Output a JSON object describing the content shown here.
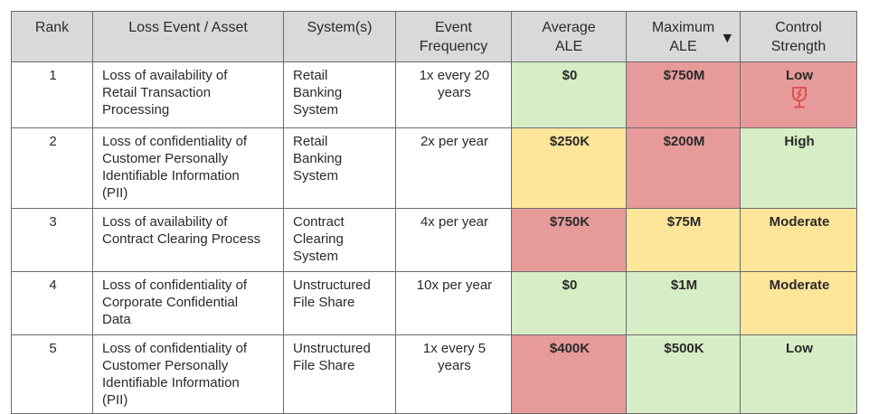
{
  "headers": {
    "rank": "Rank",
    "loss_event": "Loss Event / Asset",
    "systems": "System(s)",
    "event_frequency": [
      "Event",
      "Frequency"
    ],
    "average_ale": [
      "Average",
      "ALE"
    ],
    "maximum_ale": [
      "Maximum",
      "ALE"
    ],
    "control_strength": [
      "Control",
      "Strength"
    ]
  },
  "sort_icon": "triangle-down-icon",
  "fragile_icon": "broken-glass-icon",
  "colors": {
    "green": "#d6edc5",
    "yellow": "#fde59a",
    "red": "#e79a9a",
    "header": "#d9d9d9",
    "icon": "#d9534f"
  },
  "rows": [
    {
      "rank": "1",
      "loss_event": [
        "Loss of availability of",
        "Retail Transaction",
        "Processing"
      ],
      "systems": [
        "Retail",
        "Banking",
        "System"
      ],
      "frequency": [
        "1x every 20",
        "years"
      ],
      "average_ale": "$0",
      "maximum_ale": "$750M",
      "control_strength": "Low"
    },
    {
      "rank": "2",
      "loss_event": [
        "Loss of confidentiality of",
        "Customer Personally",
        "Identifiable Information",
        "(PII)"
      ],
      "systems": [
        "Retail",
        "Banking",
        "System"
      ],
      "frequency": [
        "2x per year"
      ],
      "average_ale": "$250K",
      "maximum_ale": "$200M",
      "control_strength": "High"
    },
    {
      "rank": "3",
      "loss_event": [
        "Loss of availability of",
        "Contract Clearing Process"
      ],
      "systems": [
        "Contract",
        "Clearing",
        "System"
      ],
      "frequency": [
        "4x per year"
      ],
      "average_ale": "$750K",
      "maximum_ale": "$75M",
      "control_strength": "Moderate"
    },
    {
      "rank": "4",
      "loss_event": [
        "Loss of confidentiality of",
        "Corporate Confidential",
        "Data"
      ],
      "systems": [
        "Unstructured",
        "File Share"
      ],
      "frequency": [
        "10x per year"
      ],
      "average_ale": "$0",
      "maximum_ale": "$1M",
      "control_strength": "Moderate"
    },
    {
      "rank": "5",
      "loss_event": [
        "Loss of confidentiality of",
        "Customer Personally",
        "Identifiable Information",
        "(PII)"
      ],
      "systems": [
        "Unstructured",
        "File Share"
      ],
      "frequency": [
        "1x every 5",
        "years"
      ],
      "average_ale": "$400K",
      "maximum_ale": "$500K",
      "control_strength": "Low"
    }
  ]
}
